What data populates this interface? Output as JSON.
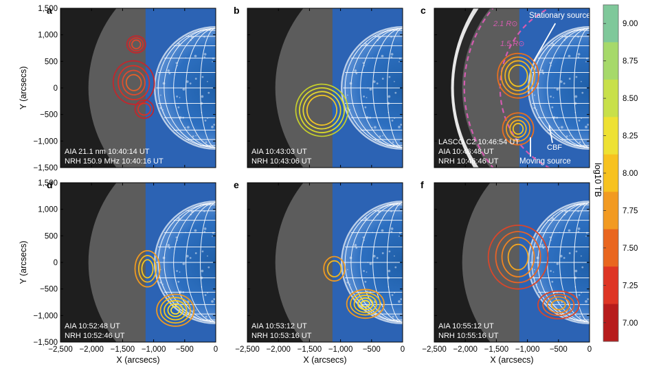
{
  "figure": {
    "x_axis_label": "X (arcsecs)",
    "y_axis_label": "Y (arcsecs)",
    "x_ticks": [
      "−2,500",
      "−2,000",
      "−1,500",
      "−1,000",
      "−500",
      "0"
    ],
    "y_ticks": [
      "1,500",
      "1,000",
      "500",
      "0",
      "−500",
      "−1,000",
      "−1,500"
    ]
  },
  "panels": [
    {
      "letter": "a",
      "lines": [
        "AIA 21.1 nm 10:40:14 UT",
        "NRH 150.9 MHz 10:40:16 UT"
      ]
    },
    {
      "letter": "b",
      "lines": [
        "AIA 10:43:03 UT",
        "NRH 10:43:06 UT"
      ]
    },
    {
      "letter": "c",
      "lines": [
        "LASCO C2 10:46:54 UT",
        "AIA 10:46:48 UT",
        "NRH 10:46:46 UT"
      ],
      "annotations": {
        "stationary": "Stationary source",
        "moving": "Moving source",
        "cbf": "CBF",
        "r21": "2.1 R⊙",
        "r15": "1.5 R⊙"
      }
    },
    {
      "letter": "d",
      "lines": [
        "AIA 10:52:48 UT",
        "NRH 10:52:46 UT"
      ]
    },
    {
      "letter": "e",
      "lines": [
        "AIA 10:53:12 UT",
        "NRH 10:53:16 UT"
      ]
    },
    {
      "letter": "f",
      "lines": [
        "AIA 10:55:12 UT",
        "NRH 10:55:16 UT"
      ]
    }
  ],
  "colorbar": {
    "label": "log10 TB",
    "ticks": [
      "9.00",
      "8.75",
      "8.50",
      "8.25",
      "8.00",
      "7.75",
      "7.50",
      "7.25",
      "7.00"
    ],
    "colors": [
      "#7fc89a",
      "#a6d96a",
      "#c8e04a",
      "#eee133",
      "#f7c21f",
      "#f29a21",
      "#e9661f",
      "#de3524",
      "#b71c1c"
    ]
  },
  "chart_data": [
    {
      "type": "scatter",
      "panel": "a",
      "xlim": [
        -2500,
        0
      ],
      "ylim": [
        -1500,
        1500
      ],
      "series": [
        {
          "color": "#d73027",
          "points": [
            [
              -1280,
              820
            ],
            [
              -1320,
              100
            ],
            [
              -1150,
              -400
            ]
          ]
        }
      ]
    },
    {
      "type": "scatter",
      "panel": "b",
      "xlim": [
        -2500,
        0
      ],
      "ylim": [
        -1500,
        1500
      ],
      "series": [
        {
          "color": "#d9d92a",
          "points": [
            [
              -1300,
              -420
            ]
          ]
        }
      ]
    },
    {
      "type": "scatter",
      "panel": "c",
      "xlim": [
        -2500,
        0
      ],
      "ylim": [
        -1500,
        1500
      ],
      "series": [
        {
          "color": "#f19a22",
          "points": [
            [
              -1150,
              230
            ],
            [
              -1150,
              -770
            ]
          ]
        }
      ]
    },
    {
      "type": "scatter",
      "panel": "d",
      "xlim": [
        -2500,
        0
      ],
      "ylim": [
        -1500,
        1500
      ],
      "series": [
        {
          "color": "#f3b71f",
          "points": [
            [
              -1100,
              -120
            ],
            [
              -650,
              -900
            ]
          ]
        }
      ]
    },
    {
      "type": "scatter",
      "panel": "e",
      "xlim": [
        -2500,
        0
      ],
      "ylim": [
        -1500,
        1500
      ],
      "series": [
        {
          "color": "#f3b71f",
          "points": [
            [
              -1100,
              -120
            ],
            [
              -600,
              -780
            ]
          ]
        }
      ]
    },
    {
      "type": "scatter",
      "panel": "f",
      "xlim": [
        -2500,
        0
      ],
      "ylim": [
        -1500,
        1500
      ],
      "series": [
        {
          "color": "#ea6c20",
          "points": [
            [
              -1150,
              100
            ],
            [
              -500,
              -800
            ]
          ]
        }
      ]
    }
  ]
}
